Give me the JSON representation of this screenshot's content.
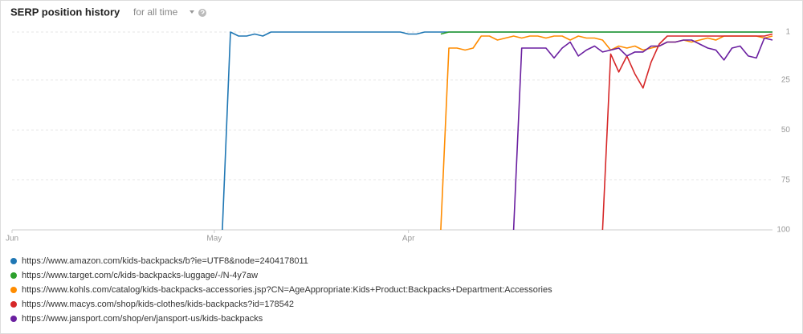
{
  "chart_data": {
    "type": "line",
    "title": "SERP position history",
    "period": "for all time",
    "ylim": [
      1,
      100
    ],
    "yticks": [
      1,
      25,
      50,
      75,
      100
    ],
    "invert_y": true,
    "grid": true,
    "categories": [
      "Jun",
      null,
      null,
      null,
      null,
      null,
      null,
      null,
      null,
      null,
      null,
      null,
      null,
      null,
      null,
      null,
      null,
      null,
      null,
      null,
      null,
      null,
      null,
      null,
      null,
      "May",
      null,
      null,
      null,
      null,
      null,
      null,
      null,
      null,
      null,
      null,
      null,
      null,
      null,
      null,
      null,
      null,
      null,
      null,
      null,
      null,
      null,
      null,
      null,
      "Apr",
      null,
      null,
      null,
      null,
      null,
      null,
      null,
      null,
      null,
      null,
      null,
      null,
      null,
      null,
      null,
      null,
      null,
      null,
      null,
      null,
      null,
      null,
      null,
      null,
      null,
      null,
      null,
      null,
      null,
      null,
      null,
      null,
      null,
      null,
      null,
      null,
      null,
      null,
      null,
      null,
      null,
      null,
      null,
      null,
      null
    ],
    "series": [
      {
        "name": "https://www.amazon.com/kids-backpacks/b?ie=UTF8&node=2404178011",
        "color": "#1f77b4",
        "values": [
          null,
          null,
          null,
          null,
          null,
          null,
          null,
          null,
          null,
          null,
          null,
          null,
          null,
          null,
          null,
          null,
          null,
          null,
          null,
          null,
          null,
          null,
          null,
          null,
          null,
          null,
          100,
          1,
          3,
          3,
          2,
          3,
          1,
          1,
          1,
          1,
          1,
          1,
          1,
          1,
          1,
          1,
          1,
          1,
          1,
          1,
          1,
          1,
          1,
          2,
          2,
          1,
          1,
          1,
          1,
          1,
          1,
          1,
          1,
          1,
          1,
          1,
          1,
          1,
          1,
          1,
          1,
          1,
          1,
          1,
          1,
          1,
          1,
          1,
          1,
          1,
          1,
          1,
          1,
          1,
          1,
          1,
          1,
          1,
          1,
          1,
          1,
          1,
          1,
          1,
          1,
          1,
          1,
          1,
          1
        ]
      },
      {
        "name": "https://www.target.com/c/kids-backpacks-luggage/-/N-4y7aw",
        "color": "#2ca02c",
        "values": [
          null,
          null,
          null,
          null,
          null,
          null,
          null,
          null,
          null,
          null,
          null,
          null,
          null,
          null,
          null,
          null,
          null,
          null,
          null,
          null,
          null,
          null,
          null,
          null,
          null,
          null,
          null,
          null,
          null,
          null,
          null,
          null,
          null,
          null,
          null,
          null,
          null,
          null,
          null,
          null,
          null,
          null,
          null,
          null,
          null,
          null,
          null,
          null,
          null,
          null,
          null,
          null,
          null,
          2,
          1,
          1,
          1,
          1,
          1,
          1,
          1,
          1,
          1,
          1,
          1,
          1,
          1,
          1,
          1,
          1,
          1,
          1,
          1,
          1,
          1,
          1,
          1,
          1,
          1,
          1,
          1,
          1,
          1,
          1,
          1,
          1,
          1,
          1,
          1,
          1,
          1,
          1,
          1,
          1,
          1
        ]
      },
      {
        "name": "https://www.kohls.com/catalog/kids-backpacks-accessories.jsp?CN=AgeAppropriate:Kids+Product:Backpacks+Department:Accessories",
        "color": "#ff8c00",
        "values": [
          null,
          null,
          null,
          null,
          null,
          null,
          null,
          null,
          null,
          null,
          null,
          null,
          null,
          null,
          null,
          null,
          null,
          null,
          null,
          null,
          null,
          null,
          null,
          null,
          null,
          null,
          null,
          null,
          null,
          null,
          null,
          null,
          null,
          null,
          null,
          null,
          null,
          null,
          null,
          null,
          null,
          null,
          null,
          null,
          null,
          null,
          null,
          null,
          null,
          null,
          null,
          null,
          null,
          100,
          9,
          9,
          10,
          9,
          3,
          3,
          5,
          4,
          3,
          4,
          3,
          3,
          4,
          3,
          3,
          5,
          3,
          4,
          4,
          5,
          10,
          8,
          9,
          8,
          10,
          9,
          8,
          6,
          6,
          5,
          6,
          5,
          4,
          5,
          3,
          3,
          3,
          3,
          3,
          4,
          3
        ]
      },
      {
        "name": "https://www.macys.com/shop/kids-clothes/kids-backpacks?id=178542",
        "color": "#d62728",
        "values": [
          null,
          null,
          null,
          null,
          null,
          null,
          null,
          null,
          null,
          null,
          null,
          null,
          null,
          null,
          null,
          null,
          null,
          null,
          null,
          null,
          null,
          null,
          null,
          null,
          null,
          null,
          null,
          null,
          null,
          null,
          null,
          null,
          null,
          null,
          null,
          null,
          null,
          null,
          null,
          null,
          null,
          null,
          null,
          null,
          null,
          null,
          null,
          null,
          null,
          null,
          null,
          null,
          null,
          null,
          null,
          null,
          null,
          null,
          null,
          null,
          null,
          null,
          null,
          null,
          null,
          null,
          null,
          null,
          null,
          null,
          null,
          null,
          null,
          100,
          12,
          21,
          13,
          22,
          29,
          16,
          7,
          3,
          3,
          3,
          3,
          3,
          3,
          3,
          3,
          3,
          3,
          3,
          3,
          3,
          2
        ]
      },
      {
        "name": "https://www.jansport.com/shop/en/jansport-us/kids-backpacks",
        "color": "#6a1fa0",
        "values": [
          null,
          null,
          null,
          null,
          null,
          null,
          null,
          null,
          null,
          null,
          null,
          null,
          null,
          null,
          null,
          null,
          null,
          null,
          null,
          null,
          null,
          null,
          null,
          null,
          null,
          null,
          null,
          null,
          null,
          null,
          null,
          null,
          null,
          null,
          null,
          null,
          null,
          null,
          null,
          null,
          null,
          null,
          null,
          null,
          null,
          null,
          null,
          null,
          null,
          null,
          null,
          null,
          null,
          null,
          null,
          null,
          null,
          null,
          null,
          null,
          null,
          null,
          100,
          9,
          9,
          9,
          9,
          14,
          9,
          6,
          13,
          10,
          8,
          11,
          10,
          9,
          13,
          11,
          11,
          8,
          8,
          6,
          6,
          5,
          5,
          7,
          9,
          10,
          15,
          9,
          8,
          13,
          14,
          4,
          5
        ]
      }
    ]
  }
}
